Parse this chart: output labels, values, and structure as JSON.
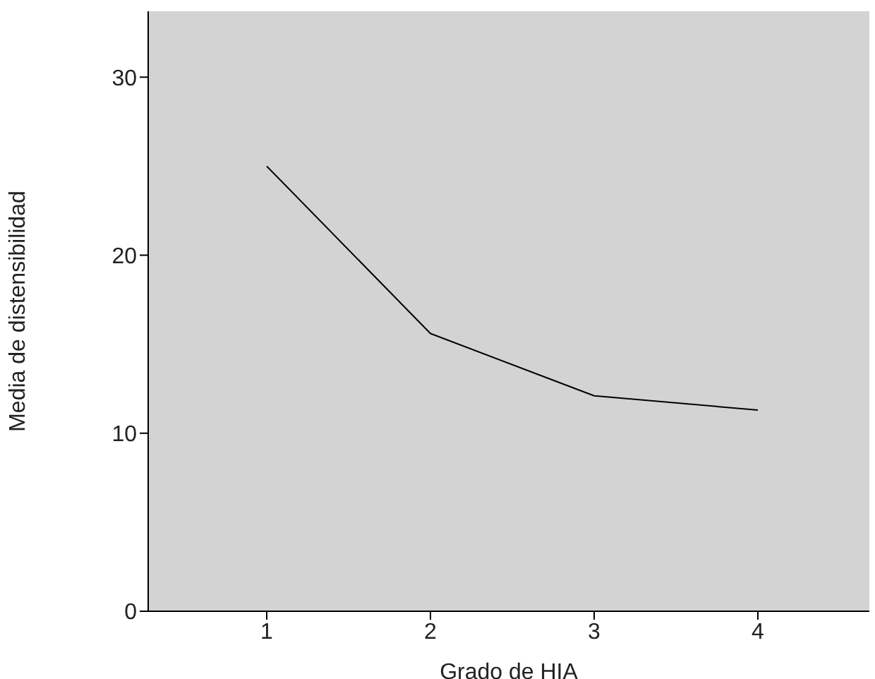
{
  "chart_data": {
    "type": "line",
    "xlabel": "Grado de HIA",
    "ylabel": "Media de distensibilidad",
    "categories": [
      "1",
      "2",
      "3",
      "4"
    ],
    "series": [
      {
        "color": "#000000",
        "values": [
          25.0,
          15.6,
          12.1,
          11.3
        ]
      }
    ],
    "ylim": [
      0,
      33.7
    ],
    "yticks": [
      0,
      10,
      20,
      30
    ],
    "grid": false,
    "legend": false,
    "marker": "none",
    "line_style": "solid"
  }
}
